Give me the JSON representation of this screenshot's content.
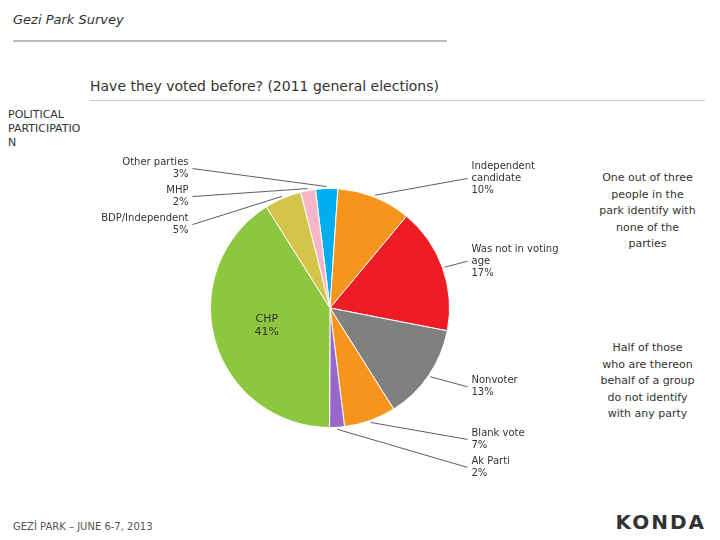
{
  "chart_data": {
    "type": "pie",
    "title": "Gezi Park Survey",
    "subtitle": "Have they voted before? (2011 general elections)",
    "categories": [
      "Other parties",
      "Independent candidate",
      "Was not in voting age",
      "Nonvoter",
      "Blank vote",
      "Ak Parti",
      "CHP",
      "BDP/Independent",
      "MHP"
    ],
    "values": [
      3,
      10,
      17,
      13,
      7,
      2,
      41,
      5,
      2
    ],
    "value_labels": [
      "3%",
      "10%",
      "17%",
      "13%",
      "7%",
      "2%",
      "41%",
      "5%",
      "2%"
    ],
    "colors": [
      "#00aeef",
      "#f7941d",
      "#ee1c25",
      "#808080",
      "#f7941d",
      "#9966cc",
      "#8dc63f",
      "#d4c54a",
      "#f7b6c8"
    ],
    "data_labels": true,
    "annotations": [
      "POLITICAL\nPARTICIPATIO\nN",
      "One out of three\npeople in the\npark identify with\nnone of the\nparties",
      "Half of those\nwho are thereon\nbehalf of a group\ndo not identify\nwith any party",
      "GEZİ PARK – JUNE 6-7, 2013",
      "KONDA"
    ]
  }
}
